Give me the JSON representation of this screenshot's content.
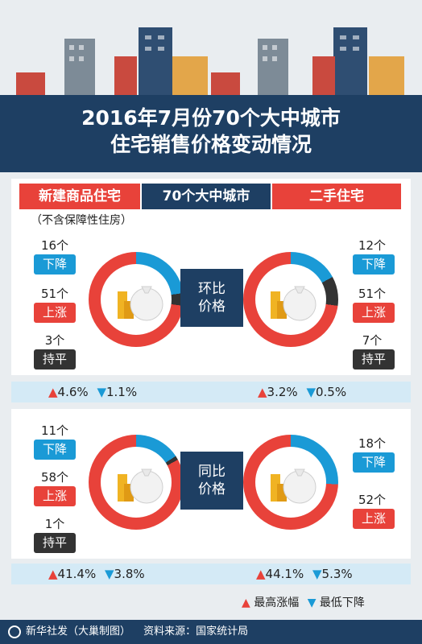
{
  "title": {
    "line1": "2016年7月份70个大中城市",
    "line2": "住宅销售价格变动情况"
  },
  "header": {
    "left": "新建商品住宅",
    "center": "70个大中城市",
    "right": "二手住宅",
    "note": "（不含保障性住房）"
  },
  "mom": {
    "label_line1": "环比",
    "label_line2": "价格",
    "new": {
      "down_count": "16个",
      "down_label": "下降",
      "up_count": "51个",
      "up_label": "上涨",
      "flat_count": "3个",
      "flat_label": "持平",
      "down_fraction": 0.2286,
      "flat_fraction": 0.0429,
      "max_rise": "4.6%",
      "max_fall": "1.1%"
    },
    "used": {
      "down_count": "12个",
      "down_label": "下降",
      "up_count": "51个",
      "up_label": "上涨",
      "flat_count": "7个",
      "flat_label": "持平",
      "down_fraction": 0.1714,
      "flat_fraction": 0.1,
      "max_rise": "3.2%",
      "max_fall": "0.5%"
    }
  },
  "yoy": {
    "label_line1": "同比",
    "label_line2": "价格",
    "new": {
      "down_count": "11个",
      "down_label": "下降",
      "up_count": "58个",
      "up_label": "上涨",
      "flat_count": "1个",
      "flat_label": "持平",
      "down_fraction": 0.1571,
      "flat_fraction": 0.0143,
      "max_rise": "41.4%",
      "max_fall": "3.8%"
    },
    "used": {
      "down_count": "18个",
      "down_label": "下降",
      "up_count": "52个",
      "up_label": "上涨",
      "down_fraction": 0.2571,
      "flat_fraction": 0,
      "max_rise": "44.1%",
      "max_fall": "5.3%"
    }
  },
  "legend": {
    "rise": "最高涨幅",
    "fall": "最低下降"
  },
  "footer": {
    "agency": "新华社发（大巢制图）",
    "source": "资料来源：国家统计局"
  },
  "colors": {
    "navy": "#1e3f63",
    "red": "#e8423a",
    "blue": "#1a9ad6",
    "dark": "#333333"
  }
}
